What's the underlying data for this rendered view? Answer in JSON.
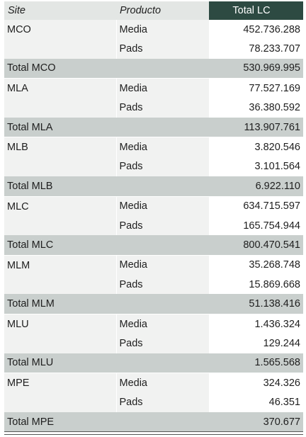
{
  "header": {
    "site": "Site",
    "producto": "Producto",
    "total": "Total LC"
  },
  "groups": [
    {
      "site": "MCO",
      "rows": [
        {
          "producto": "Media",
          "value": "452.736.288"
        },
        {
          "producto": "Pads",
          "value": "78.233.707"
        }
      ],
      "total_label": "Total MCO",
      "total_value": "530.969.995"
    },
    {
      "site": "MLA",
      "rows": [
        {
          "producto": "Media",
          "value": "77.527.169"
        },
        {
          "producto": "Pads",
          "value": "36.380.592"
        }
      ],
      "total_label": "Total MLA",
      "total_value": "113.907.761"
    },
    {
      "site": "MLB",
      "rows": [
        {
          "producto": "Media",
          "value": "3.820.546"
        },
        {
          "producto": "Pads",
          "value": "3.101.564"
        }
      ],
      "total_label": "Total MLB",
      "total_value": "6.922.110"
    },
    {
      "site": "MLC",
      "rows": [
        {
          "producto": "Media",
          "value": "634.715.597"
        },
        {
          "producto": "Pads",
          "value": "165.754.944"
        }
      ],
      "total_label": "Total MLC",
      "total_value": "800.470.541"
    },
    {
      "site": "MLM",
      "rows": [
        {
          "producto": "Media",
          "value": "35.268.748"
        },
        {
          "producto": "Pads",
          "value": "15.869.668"
        }
      ],
      "total_label": "Total MLM",
      "total_value": "51.138.416"
    },
    {
      "site": "MLU",
      "rows": [
        {
          "producto": "Media",
          "value": "1.436.324"
        },
        {
          "producto": "Pads",
          "value": "129.244"
        }
      ],
      "total_label": "Total MLU",
      "total_value": "1.565.568"
    },
    {
      "site": "MPE",
      "rows": [
        {
          "producto": "Media",
          "value": "324.326"
        },
        {
          "producto": "Pads",
          "value": "46.351"
        }
      ],
      "total_label": "Total MPE",
      "total_value": "370.677"
    }
  ]
}
